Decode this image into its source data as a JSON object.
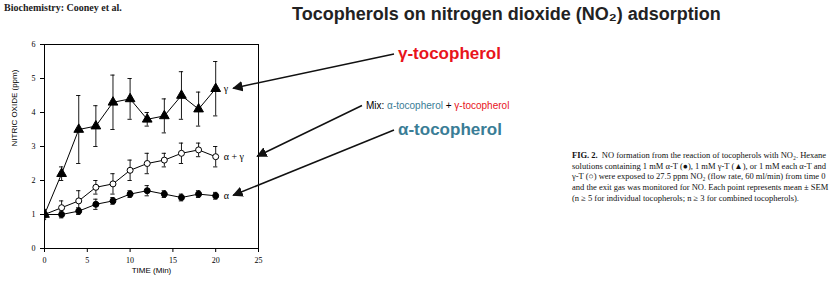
{
  "chart_data": {
    "type": "line",
    "title": "Tocopherols on nitrogen dioxide (NO₂) adsorption",
    "subtitle": "Biochemistry: Cooney et al.",
    "x_label": "TIME (Min)",
    "y_label": "NITRIC OXIDE (ppm)",
    "x": [
      0,
      2,
      4,
      6,
      8,
      10,
      12,
      14,
      16,
      18,
      20
    ],
    "xlim": [
      0,
      25
    ],
    "xticks": [
      0,
      5,
      10,
      15,
      20,
      25
    ],
    "ylim": [
      0,
      6
    ],
    "yticks": [
      0,
      1,
      2,
      3,
      4,
      5,
      6
    ],
    "series": [
      {
        "name": "γ",
        "color": "#000000",
        "marker": "triangle",
        "values": [
          1.0,
          2.2,
          3.5,
          3.6,
          4.3,
          4.4,
          3.8,
          3.9,
          4.5,
          4.1,
          4.7
        ],
        "errors": [
          0.1,
          0.2,
          1.0,
          0.6,
          0.8,
          0.6,
          0.2,
          0.5,
          0.7,
          0.5,
          0.8
        ]
      },
      {
        "name": "α + γ",
        "color": "#000000",
        "marker": "open-circle",
        "values": [
          1.0,
          1.2,
          1.4,
          1.8,
          1.9,
          2.3,
          2.5,
          2.6,
          2.8,
          2.9,
          2.7
        ],
        "errors": [
          0.15,
          0.2,
          0.3,
          0.2,
          0.3,
          0.3,
          0.3,
          0.2,
          0.3,
          0.2,
          0.3
        ]
      },
      {
        "name": "α",
        "color": "#000000",
        "marker": "circle",
        "values": [
          1.0,
          1.0,
          1.1,
          1.3,
          1.4,
          1.6,
          1.7,
          1.6,
          1.5,
          1.6,
          1.55
        ],
        "errors": [
          0.1,
          0.1,
          0.1,
          0.15,
          0.1,
          0.1,
          0.15,
          0.1,
          0.1,
          0.1,
          0.1
        ]
      }
    ],
    "annotations": [
      {
        "series": "γ",
        "parts": [
          {
            "text": "γ-tocopherol",
            "color": "#e8141b"
          }
        ]
      },
      {
        "series": "α + γ",
        "parts": [
          {
            "text": "Mix: ",
            "color": "#000000"
          },
          {
            "text": "α-tocopherol",
            "color": "#3a7d96"
          },
          {
            "text": " + ",
            "color": "#000000"
          },
          {
            "text": "γ-tocopherol",
            "color": "#e8141b"
          }
        ]
      },
      {
        "series": "α",
        "parts": [
          {
            "text": "α-tocopherol",
            "color": "#3a7d96"
          }
        ]
      }
    ],
    "caption": {
      "label": "FIG. 2.",
      "text": "NO formation from the reaction of tocopherols with NO₂. Hexane solutions containing 1 mM α-T (●), 1 mM γ-T (▲), or 1 mM each α-T and γ-T (○) were exposed to 27.5 ppm NO₂ (flow rate, 60 ml/min) from time 0 and the exit gas was monitored for NO. Each point represents mean ± SEM (n ≥ 5 for individual tocopherols; n ≥ 3 for combined tocopherols)."
    }
  }
}
